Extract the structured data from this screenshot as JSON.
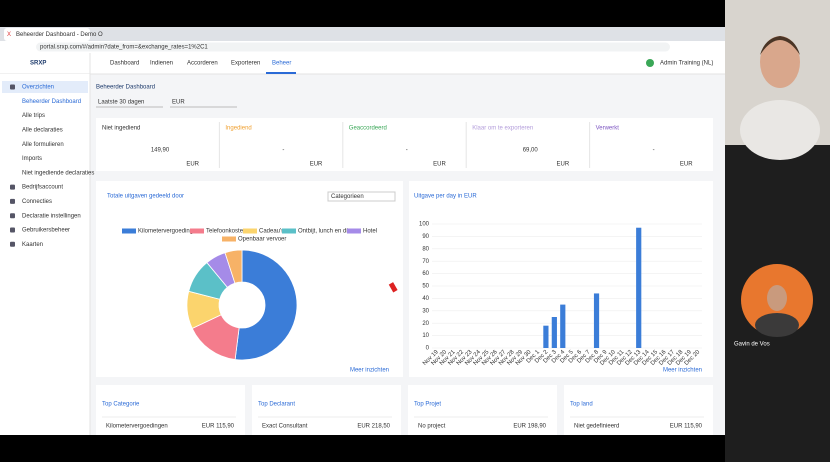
{
  "browser": {
    "tab_title": "Beheerder Dashboard - Demo O",
    "url": "portal.srxp.com/#/admin?date_from=&exchange_rates=1%2C1"
  },
  "header": {
    "logo": "SRXP",
    "nav": [
      "Dashboard",
      "Indienen",
      "Accorderen",
      "Exporteren",
      "Beheer"
    ],
    "user": "Admin Training (NL)"
  },
  "sidebar": {
    "items": [
      "Overzichten",
      "Beheerder Dashboard",
      "Alle trips",
      "Alle declaraties",
      "Alle formulieren",
      "Imports",
      "Niet ingediende declaraties",
      "Bedrijfsaccount",
      "Connecties",
      "Declaratie instellingen",
      "Gebruikersbeheer",
      "Kaarten"
    ]
  },
  "page": {
    "title": "Beheerder Dashboard",
    "filters": [
      "Laatste 30 dagen",
      "EUR"
    ]
  },
  "stats": [
    {
      "label": "Niet ingediend",
      "value": "149,90",
      "unit": "EUR",
      "color": "#333333"
    },
    {
      "label": "Ingediend",
      "value": "-",
      "unit": "EUR",
      "color": "#f0a030"
    },
    {
      "label": "Geaccordeerd",
      "value": "-",
      "unit": "EUR",
      "color": "#3aa757"
    },
    {
      "label": "Klaar om te exporteren",
      "value": "69,00",
      "unit": "EUR",
      "color": "#b39ddb"
    },
    {
      "label": "Verwerkt",
      "value": "-",
      "unit": "EUR",
      "color": "#7e57c2"
    }
  ],
  "donut_chart": {
    "type": "pie",
    "title": "Totale uitgaven gedeeld door",
    "dropdown": "Categorieen",
    "categories": [
      "Kilometervergoedingen",
      "Telefoonkosten",
      "Cadeau's",
      "Ontbijt, lunch en diner",
      "Hotel",
      "Openbaar vervoer"
    ],
    "values": [
      52,
      16,
      11,
      10,
      6,
      5
    ],
    "colors": [
      "#3b7dd8",
      "#f47c8c",
      "#fbd46d",
      "#5bc0c8",
      "#a58be8",
      "#f7b267"
    ],
    "link": "Meer inzichten"
  },
  "bar_chart": {
    "type": "bar",
    "title": "Uitgave per day in EUR",
    "categories": [
      "Nov 19",
      "Nov 20",
      "Nov 21",
      "Nov 22",
      "Nov 23",
      "Nov 24",
      "Nov 25",
      "Nov 26",
      "Nov 27",
      "Nov 28",
      "Nov 29",
      "Nov 30",
      "Dec 1",
      "Dec 2",
      "Dec 3",
      "Dec 4",
      "Dec 5",
      "Dec 6",
      "Dec 7",
      "Dec 8",
      "Dec 9",
      "Dec 10",
      "Dec 11",
      "Dec 12",
      "Dec 13",
      "Dec 14",
      "Dec 15",
      "Dec 16",
      "Dec 17",
      "Dec 18",
      "Dec 19",
      "Dec 20"
    ],
    "values": [
      0,
      0,
      0,
      0,
      0,
      0,
      0,
      0,
      0,
      0,
      0,
      0,
      0,
      18,
      25,
      35,
      0,
      0,
      0,
      44,
      0,
      0,
      0,
      0,
      97,
      0,
      0,
      0,
      0,
      0,
      0,
      0
    ],
    "color": "#3b7dd8",
    "ylim": [
      0,
      100
    ],
    "yticks": [
      0,
      10,
      20,
      30,
      40,
      50,
      60,
      70,
      80,
      90,
      100
    ],
    "grid": true,
    "link": "Meer inzichten"
  },
  "top_cards": [
    {
      "title": "Top Categorie",
      "label": "Kilometervergoedingen",
      "amount": "EUR 115,90"
    },
    {
      "title": "Top Declarant",
      "label": "Exact Consultant",
      "amount": "EUR 218,50"
    },
    {
      "title": "Top Projet",
      "label": "No project",
      "amount": "EUR 198,90"
    },
    {
      "title": "Top land",
      "label": "Niet gedefinieerd",
      "amount": "EUR 115,90"
    }
  ],
  "video": {
    "name": "Gavin de Vos"
  }
}
